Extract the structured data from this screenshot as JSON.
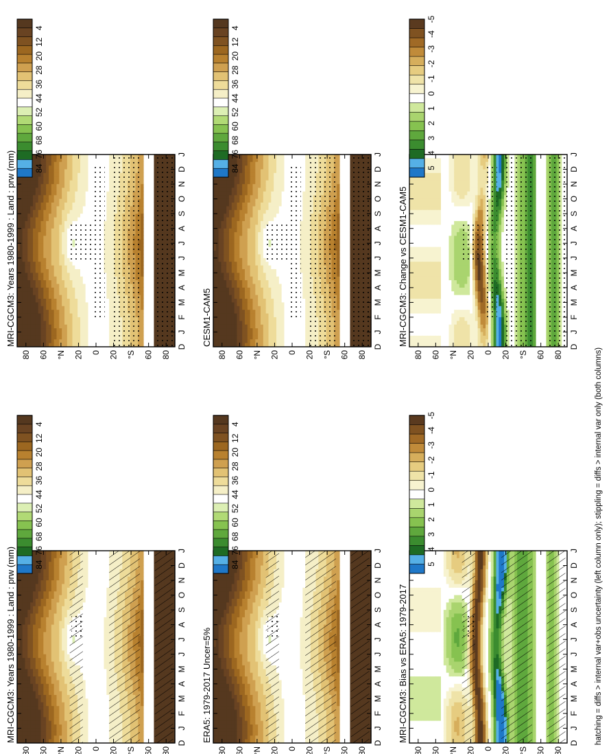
{
  "footnote": "hatching = diffs > internal var+obs uncertainty (left column only); stippling = diffs > internal var only (both columns)",
  "months": [
    "D",
    "J",
    "F",
    "M",
    "A",
    "M",
    "J",
    "J",
    "A",
    "S",
    "O",
    "N",
    "D",
    "J"
  ],
  "lat_labels": [
    "80",
    "60",
    "°N",
    "20",
    "0",
    "20",
    "°S",
    "60",
    "80"
  ],
  "abs_colorbar": {
    "labels": [
      "84",
      "76",
      "68",
      "60",
      "52",
      "44",
      "36",
      "28",
      "20",
      "12",
      "4"
    ],
    "colors": [
      "#1f78c8",
      "#55b0e6",
      "#1e6b24",
      "#3b8c2f",
      "#5fa83d",
      "#86c250",
      "#b1da75",
      "#dcefb4",
      "#ffffff",
      "#f5efc7",
      "#eedc9a",
      "#e2c274",
      "#cfa050",
      "#b8812f",
      "#9c6720",
      "#7f5221",
      "#694322",
      "#55381f"
    ]
  },
  "diff_colorbar": {
    "labels": [
      "5",
      "4",
      "3",
      "2",
      "1",
      "0",
      "-1",
      "-2",
      "-3",
      "-4",
      "-5"
    ],
    "colors": [
      "#1f78c8",
      "#55b0e6",
      "#1e6b24",
      "#3b8c2f",
      "#5fa83d",
      "#86c250",
      "#a9d46e",
      "#cfe89c",
      "#ffffff",
      "#f7f3d0",
      "#efe3a8",
      "#e6cc80",
      "#d6ae5c",
      "#c08b3a",
      "#a06a26",
      "#7f5221",
      "#5a3a1f"
    ]
  },
  "chart_data": [
    {
      "type": "heatmap",
      "panel": "left-top",
      "title": "MRI-CGCM3: Years 1980-1999 : Land : prw (mm)",
      "x": "month",
      "y": "latitude",
      "overlay": "hatching+stippling"
    },
    {
      "type": "heatmap",
      "panel": "left-middle",
      "title": "ERA5: 1979-2017 Uncer=5%",
      "x": "month",
      "y": "latitude",
      "overlay": "hatching+stippling"
    },
    {
      "type": "heatmap",
      "panel": "left-bottom",
      "title": "MRI-CGCM3: Bias vs ERA5: 1979-2017",
      "x": "month",
      "y": "latitude",
      "overlay": "hatching+stippling"
    },
    {
      "type": "heatmap",
      "panel": "right-top",
      "title": "MRI-CGCM3: Years 1980-1999 : Land : prw (mm)",
      "x": "month",
      "y": "latitude",
      "overlay": "stippling"
    },
    {
      "type": "heatmap",
      "panel": "right-middle",
      "title": "CESM1-CAM5",
      "x": "month",
      "y": "latitude",
      "overlay": "stippling"
    },
    {
      "type": "heatmap",
      "panel": "right-bottom",
      "title": "MRI-CGCM3: Change vs CESM1-CAM5",
      "x": "month",
      "y": "latitude",
      "overlay": "stippling"
    }
  ]
}
